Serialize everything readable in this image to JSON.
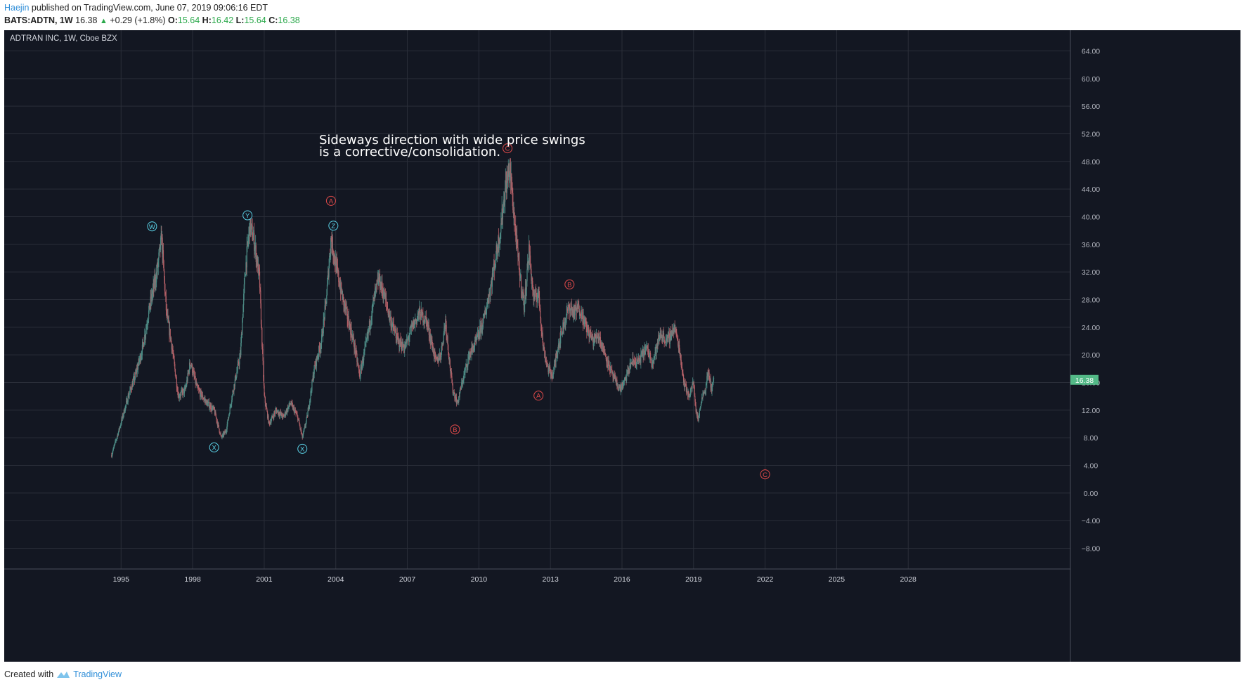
{
  "header": {
    "author": "Haejin",
    "published_text": "published on TradingView.com, June 07, 2019 09:06:16 EDT",
    "symbol": "BATS:ADTN, 1W",
    "last": "16.38",
    "change_arrow": "▲",
    "change": "+0.29 (+1.8%)",
    "o_label": "O:",
    "o_value": "15.64",
    "h_label": "H:",
    "h_value": "16.42",
    "l_label": "L:",
    "l_value": "15.64",
    "c_label": "C:",
    "c_value": "16.38"
  },
  "footer": {
    "created_with": "Created with",
    "brand": "TradingView"
  },
  "colors": {
    "background": "#131722",
    "grid": "#2a2e39",
    "text": "#b2b5be",
    "up": "#4c8a84",
    "down": "#b25f66",
    "price_tag": "#53b987",
    "wave_cyan": "#5ad1e6",
    "wave_red": "#e04a4a"
  },
  "chart_data": {
    "type": "candlestick",
    "title": "ADTRAN INC, 1W, Cboe BZX",
    "annotation_lines": [
      "Sideways direction with wide price swings",
      "is a corrective/consolidation."
    ],
    "current_price_label": "16.38",
    "current_price": 16.38,
    "ylim": [
      -11,
      67
    ],
    "yticks": [
      "64.00",
      "60.00",
      "56.00",
      "52.00",
      "48.00",
      "44.00",
      "40.00",
      "36.00",
      "32.00",
      "28.00",
      "24.00",
      "20.00",
      "16.00",
      "12.00",
      "8.00",
      "4.00",
      "0.00",
      "−4.00",
      "−8.00"
    ],
    "ytick_values": [
      64,
      60,
      56,
      52,
      48,
      44,
      40,
      36,
      32,
      28,
      24,
      20,
      16,
      12,
      8,
      4,
      0,
      -4,
      -8
    ],
    "xlim": [
      1990.1,
      2034.8
    ],
    "xticks": [
      "1995",
      "1998",
      "2001",
      "2004",
      "2007",
      "2010",
      "2013",
      "2016",
      "2019",
      "2022",
      "2025",
      "2028"
    ],
    "xtick_values": [
      1995,
      1998,
      2001,
      2004,
      2007,
      2010,
      2013,
      2016,
      2019,
      2022,
      2025,
      2028
    ],
    "price_path": [
      [
        1994.6,
        5.5
      ],
      [
        1994.9,
        9
      ],
      [
        1995.3,
        14
      ],
      [
        1995.6,
        17
      ],
      [
        1995.9,
        21
      ],
      [
        1996.2,
        27
      ],
      [
        1996.5,
        32
      ],
      [
        1996.7,
        37
      ],
      [
        1996.9,
        26
      ],
      [
        1997.1,
        22
      ],
      [
        1997.4,
        14
      ],
      [
        1997.7,
        15
      ],
      [
        1997.9,
        19
      ],
      [
        1998.2,
        15
      ],
      [
        1998.6,
        13
      ],
      [
        1998.9,
        12
      ],
      [
        1999.2,
        8
      ],
      [
        1999.4,
        9
      ],
      [
        1999.7,
        15
      ],
      [
        2000.0,
        20
      ],
      [
        2000.2,
        32
      ],
      [
        2000.4,
        39
      ],
      [
        2000.6,
        36
      ],
      [
        2000.8,
        31
      ],
      [
        2001.0,
        14
      ],
      [
        2001.2,
        10
      ],
      [
        2001.5,
        12
      ],
      [
        2001.8,
        11
      ],
      [
        2002.1,
        13
      ],
      [
        2002.4,
        11
      ],
      [
        2002.6,
        8
      ],
      [
        2002.8,
        11
      ],
      [
        2003.1,
        18
      ],
      [
        2003.4,
        22
      ],
      [
        2003.6,
        28
      ],
      [
        2003.8,
        37
      ],
      [
        2004.0,
        33
      ],
      [
        2004.3,
        28
      ],
      [
        2004.6,
        24
      ],
      [
        2004.8,
        21
      ],
      [
        2005.0,
        17
      ],
      [
        2005.3,
        22
      ],
      [
        2005.6,
        28
      ],
      [
        2005.8,
        31
      ],
      [
        2006.0,
        29
      ],
      [
        2006.3,
        25
      ],
      [
        2006.6,
        22
      ],
      [
        2006.9,
        21
      ],
      [
        2007.2,
        24
      ],
      [
        2007.5,
        26
      ],
      [
        2007.8,
        25
      ],
      [
        2008.0,
        22
      ],
      [
        2008.2,
        19
      ],
      [
        2008.4,
        20
      ],
      [
        2008.6,
        25
      ],
      [
        2008.8,
        18
      ],
      [
        2008.9,
        15
      ],
      [
        2009.1,
        13
      ],
      [
        2009.3,
        16
      ],
      [
        2009.6,
        20
      ],
      [
        2009.9,
        22
      ],
      [
        2010.2,
        25
      ],
      [
        2010.5,
        30
      ],
      [
        2010.7,
        34
      ],
      [
        2010.9,
        38
      ],
      [
        2011.1,
        44
      ],
      [
        2011.3,
        47
      ],
      [
        2011.5,
        39
      ],
      [
        2011.7,
        32
      ],
      [
        2011.9,
        27
      ],
      [
        2012.1,
        35
      ],
      [
        2012.3,
        28
      ],
      [
        2012.5,
        29
      ],
      [
        2012.7,
        21
      ],
      [
        2012.9,
        18
      ],
      [
        2013.1,
        17
      ],
      [
        2013.3,
        21
      ],
      [
        2013.6,
        25
      ],
      [
        2013.8,
        27
      ],
      [
        2014.0,
        26
      ],
      [
        2014.2,
        27
      ],
      [
        2014.5,
        24
      ],
      [
        2014.8,
        22
      ],
      [
        2015.0,
        23
      ],
      [
        2015.3,
        20
      ],
      [
        2015.6,
        17
      ],
      [
        2015.9,
        15
      ],
      [
        2016.1,
        16
      ],
      [
        2016.4,
        19
      ],
      [
        2016.7,
        19
      ],
      [
        2017.0,
        21
      ],
      [
        2017.3,
        19
      ],
      [
        2017.6,
        23
      ],
      [
        2017.9,
        22
      ],
      [
        2018.2,
        24
      ],
      [
        2018.4,
        21
      ],
      [
        2018.6,
        16
      ],
      [
        2018.8,
        14
      ],
      [
        2019.0,
        16
      ],
      [
        2019.1,
        12
      ],
      [
        2019.2,
        10.5
      ],
      [
        2019.35,
        14
      ],
      [
        2019.5,
        15
      ],
      [
        2019.6,
        17.5
      ],
      [
        2019.75,
        15.2
      ],
      [
        2019.85,
        16.38
      ]
    ],
    "wave_labels": [
      {
        "text": "W",
        "x": 1996.3,
        "y": 38.6,
        "color": "cyan"
      },
      {
        "text": "Y",
        "x": 2000.3,
        "y": 40.2,
        "color": "cyan"
      },
      {
        "text": "Z",
        "x": 2003.9,
        "y": 38.7,
        "color": "cyan"
      },
      {
        "text": "X",
        "x": 1998.9,
        "y": 6.6,
        "color": "cyan"
      },
      {
        "text": "X",
        "x": 2002.6,
        "y": 6.4,
        "color": "cyan"
      },
      {
        "text": "A",
        "x": 2003.8,
        "y": 42.3,
        "color": "red"
      },
      {
        "text": "C",
        "x": 2011.2,
        "y": 49.9,
        "color": "red"
      },
      {
        "text": "B",
        "x": 2013.8,
        "y": 30.2,
        "color": "red"
      },
      {
        "text": "A",
        "x": 2012.5,
        "y": 14.1,
        "color": "red"
      },
      {
        "text": "B",
        "x": 2009.0,
        "y": 9.2,
        "color": "red"
      },
      {
        "text": "C",
        "x": 2022.0,
        "y": 2.7,
        "color": "red"
      }
    ]
  }
}
